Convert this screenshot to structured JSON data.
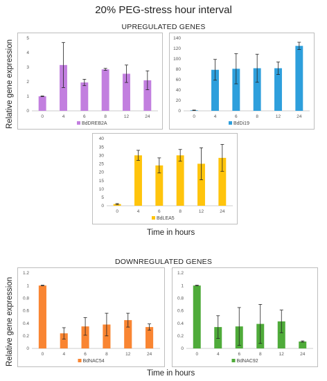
{
  "title": "20% PEG-stress hour interval",
  "sections": {
    "up": "UPREGULATED GENES",
    "down": "DOWNREGULATED GENES"
  },
  "axis_labels": {
    "y_up": "Relative gene expression",
    "y_down": "Relative gene expression",
    "x_up": "Time in hours",
    "x_down": "Time in hours"
  },
  "chart_data": [
    {
      "type": "bar",
      "legend": "BdDREB2A",
      "color": "#c27fdf",
      "categories": [
        "0",
        "4",
        "6",
        "8",
        "12",
        "24"
      ],
      "values": [
        1,
        3.15,
        1.95,
        2.85,
        2.55,
        2.1
      ],
      "errors": [
        0.02,
        1.55,
        0.22,
        0.07,
        0.6,
        0.65
      ],
      "ylim": [
        0,
        5
      ],
      "yticks": [
        0,
        1,
        2,
        3,
        4,
        5
      ]
    },
    {
      "type": "bar",
      "legend": "BdDi19",
      "color": "#2e9fdc",
      "categories": [
        "0",
        "4",
        "6",
        "8",
        "12",
        "24"
      ],
      "values": [
        1,
        79,
        81,
        82,
        82,
        125
      ],
      "errors": [
        0.5,
        20,
        29,
        27,
        12,
        7
      ],
      "ylim": [
        0,
        140
      ],
      "yticks": [
        0,
        20,
        40,
        60,
        80,
        100,
        120,
        140
      ]
    },
    {
      "type": "bar",
      "legend": "BdLEA5",
      "color": "#ffc40c",
      "categories": [
        "0",
        "4",
        "6",
        "8",
        "12",
        "24"
      ],
      "values": [
        1,
        30,
        24,
        30,
        25,
        28.5
      ],
      "errors": [
        0.3,
        3,
        4.5,
        3.5,
        9.5,
        8
      ],
      "ylim": [
        0,
        40
      ],
      "yticks": [
        0,
        5,
        10,
        15,
        20,
        25,
        30,
        35,
        40
      ]
    },
    {
      "type": "bar",
      "legend": "BdNAC54",
      "color": "#f98532",
      "categories": [
        "0",
        "4",
        "6",
        "8",
        "12",
        "24"
      ],
      "values": [
        1,
        0.24,
        0.35,
        0.38,
        0.45,
        0.34
      ],
      "errors": [
        0.005,
        0.09,
        0.14,
        0.18,
        0.11,
        0.05
      ],
      "ylim": [
        0,
        1.2
      ],
      "yticks": [
        0,
        0.2,
        0.4,
        0.6,
        0.8,
        1,
        1.2
      ]
    },
    {
      "type": "bar",
      "legend": "BdNAC92",
      "color": "#4fab3a",
      "categories": [
        "0",
        "4",
        "6",
        "8",
        "12",
        "24"
      ],
      "values": [
        1,
        0.34,
        0.35,
        0.39,
        0.43,
        0.11
      ],
      "errors": [
        0.005,
        0.18,
        0.3,
        0.31,
        0.18,
        0.01
      ],
      "ylim": [
        0,
        1.2
      ],
      "yticks": [
        0,
        0.2,
        0.4,
        0.6,
        0.8,
        1,
        1.2
      ]
    }
  ]
}
